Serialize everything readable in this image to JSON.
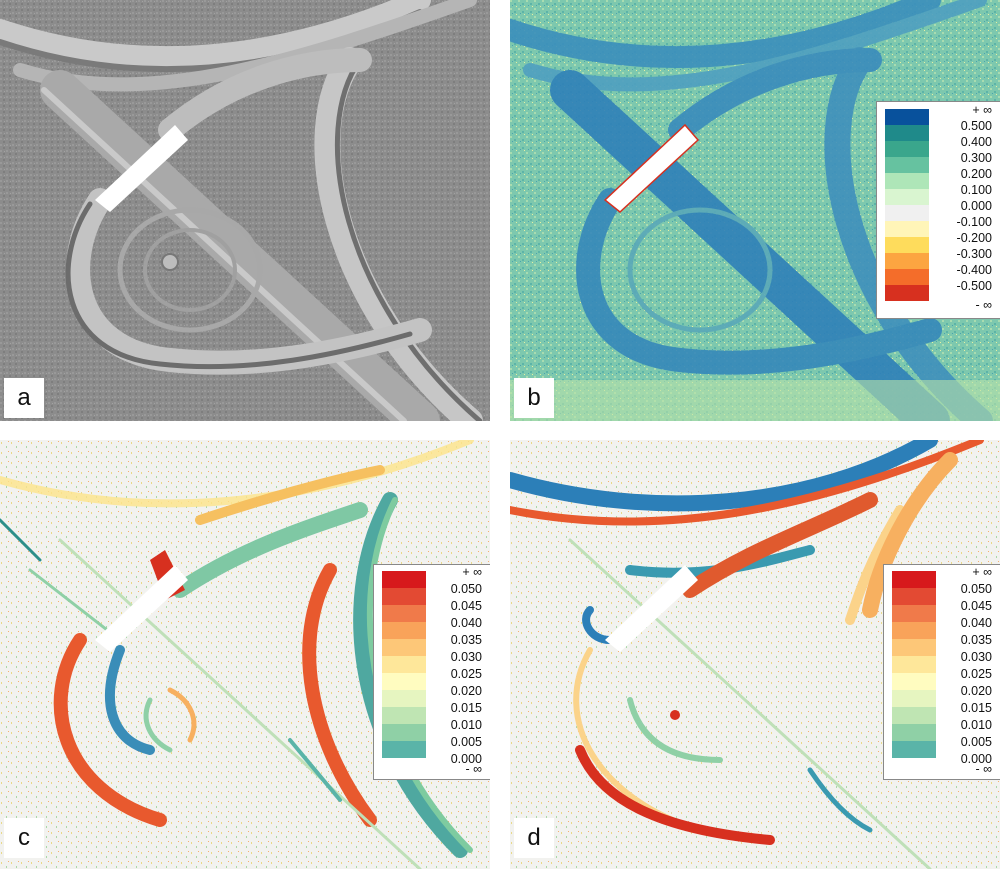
{
  "panels": {
    "a": {
      "label": "a"
    },
    "b": {
      "label": "b"
    },
    "c": {
      "label": "c"
    },
    "d": {
      "label": "d"
    }
  },
  "legend_b": {
    "labels": [
      "+ ∞",
      "0.500",
      "0.400",
      "0.300",
      "0.200",
      "0.100",
      "0.000",
      "-0.100",
      "-0.200",
      "-0.300",
      "-0.400",
      "-0.500",
      "- ∞"
    ],
    "colors": [
      "#08519c",
      "#1f8a8a",
      "#3aa68c",
      "#66c2a0",
      "#aee6b8",
      "#d9f5d0",
      "#f0f0f0",
      "#fff5b8",
      "#fedc5c",
      "#fca541",
      "#f46d2a",
      "#d7301f",
      "#99000d"
    ]
  },
  "legend_cd": {
    "labels": [
      "+ ∞",
      "0.050",
      "0.045",
      "0.040",
      "0.035",
      "0.030",
      "0.025",
      "0.020",
      "0.015",
      "0.010",
      "0.005",
      "0.000",
      "- ∞"
    ],
    "colors": [
      "#d7191c",
      "#e34a33",
      "#f07a4a",
      "#f9a35a",
      "#fdc778",
      "#fee79a",
      "#fffcc0",
      "#e6f5c0",
      "#bfe5b3",
      "#8fd0a6",
      "#5ab4a8",
      "#2c7fb8"
    ]
  }
}
